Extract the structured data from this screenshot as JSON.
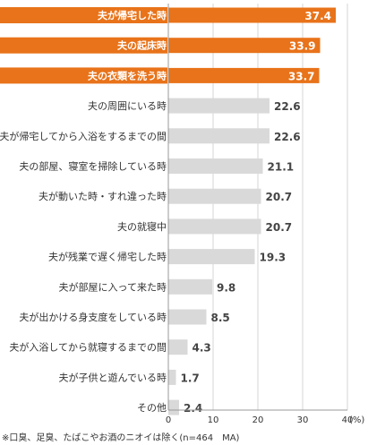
{
  "chart_data": {
    "type": "bar",
    "orientation": "horizontal",
    "categories": [
      "夫が帰宅した時",
      "夫の起床時",
      "夫の衣類を洗う時",
      "夫の周囲にいる時",
      "夫が帰宅してから入浴をするまでの間",
      "夫の部屋、寝室を掃除している時",
      "夫が動いた時・すれ違った時",
      "夫の就寝中",
      "夫が残業で遅く帰宅した時",
      "夫が部屋に入って来た時",
      "夫が出かける身支度をしている時",
      "夫が入浴してから就寝するまでの間",
      "夫が子供と遊んでいる時",
      "その他"
    ],
    "values": [
      37.4,
      33.9,
      33.7,
      22.6,
      22.6,
      21.1,
      20.7,
      20.7,
      19.3,
      9.8,
      8.5,
      4.3,
      1.7,
      2.4
    ],
    "value_labels": [
      "37.4",
      "33.9",
      "33.7",
      "22.6",
      "22.6",
      "21.1",
      "20.7",
      "20.7",
      "19.3",
      "9.8",
      "8.5",
      "4.3",
      "1.7",
      "2.4"
    ],
    "highlight_count": 3,
    "xlim": [
      0,
      40
    ],
    "xticks": [
      0,
      10,
      20,
      30,
      40
    ],
    "x_unit": "(%)",
    "grid": "vertical",
    "colors": {
      "highlight_bar": "#e8731a",
      "highlight_label_bg": "#e8731a",
      "highlight_text": "#ffffff",
      "highlight_category": "#e8731a",
      "normal_bar": "#d9d9d9",
      "normal_text": "#333333",
      "value_text": "#444444",
      "gridline": "#d4d4d4"
    }
  },
  "footnote": "※口臭、足臭、たばこやお酒のニオイは除く(n=464　MA)"
}
